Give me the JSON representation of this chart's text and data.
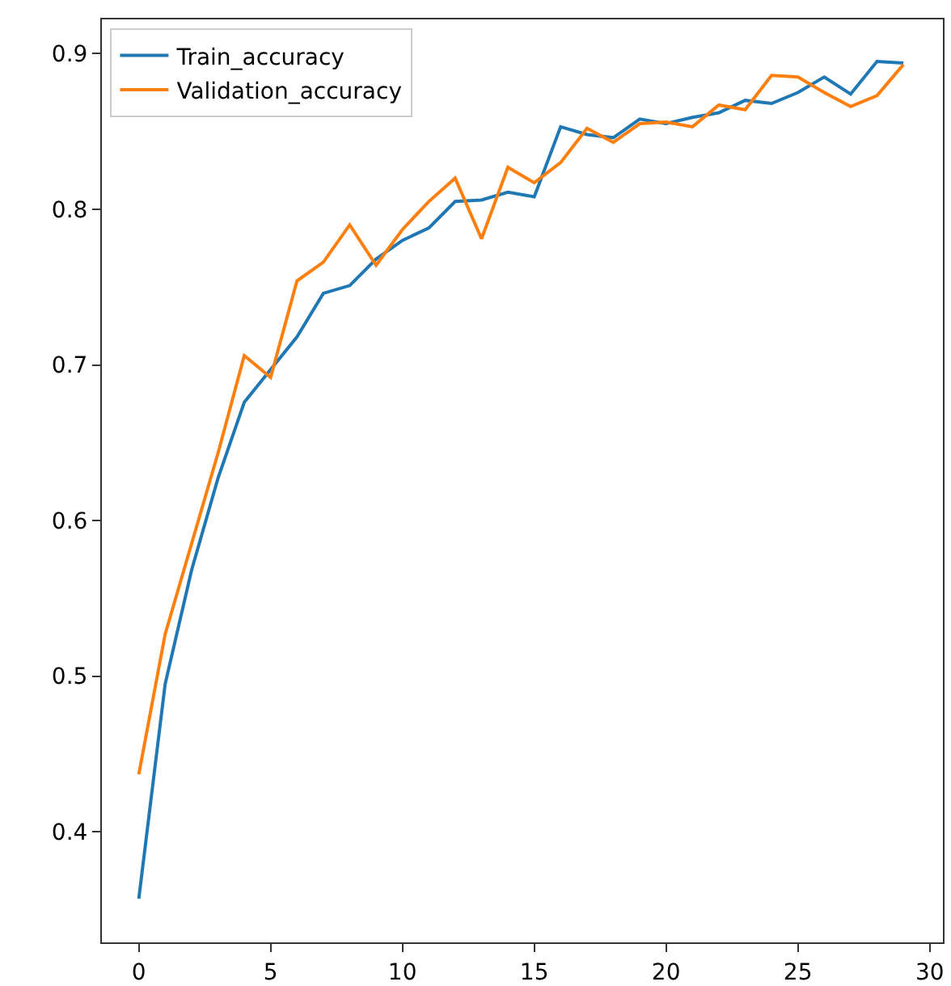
{
  "chart_data": {
    "type": "line",
    "x": [
      0,
      1,
      2,
      3,
      4,
      5,
      6,
      7,
      8,
      9,
      10,
      11,
      12,
      13,
      14,
      15,
      16,
      17,
      18,
      19,
      20,
      21,
      22,
      23,
      24,
      25,
      26,
      27,
      28,
      29
    ],
    "series": [
      {
        "name": "Train_accuracy",
        "color": "#1f77b4",
        "values": [
          0.357,
          0.495,
          0.568,
          0.627,
          0.676,
          0.697,
          0.718,
          0.746,
          0.751,
          0.768,
          0.78,
          0.788,
          0.805,
          0.806,
          0.811,
          0.808,
          0.853,
          0.848,
          0.846,
          0.858,
          0.855,
          0.859,
          0.862,
          0.87,
          0.868,
          0.875,
          0.885,
          0.874,
          0.895,
          0.894
        ]
      },
      {
        "name": "Validation_accuracy",
        "color": "#ff7f0e",
        "values": [
          0.437,
          0.527,
          0.585,
          0.643,
          0.706,
          0.692,
          0.754,
          0.766,
          0.79,
          0.764,
          0.787,
          0.805,
          0.82,
          0.781,
          0.827,
          0.817,
          0.83,
          0.852,
          0.843,
          0.855,
          0.856,
          0.853,
          0.867,
          0.864,
          0.886,
          0.885,
          0.875,
          0.866,
          0.873,
          0.893
        ]
      }
    ],
    "xlim": [
      -1.4,
      30.5
    ],
    "xticks": [
      0,
      5,
      10,
      15,
      20,
      25,
      30
    ],
    "ylim": [
      0.329,
      0.922
    ],
    "yticks": [
      0.4,
      0.5,
      0.6,
      0.7,
      0.8,
      0.9
    ],
    "grid": false,
    "legend": "top left",
    "marker": "none",
    "line_style": "solid"
  }
}
